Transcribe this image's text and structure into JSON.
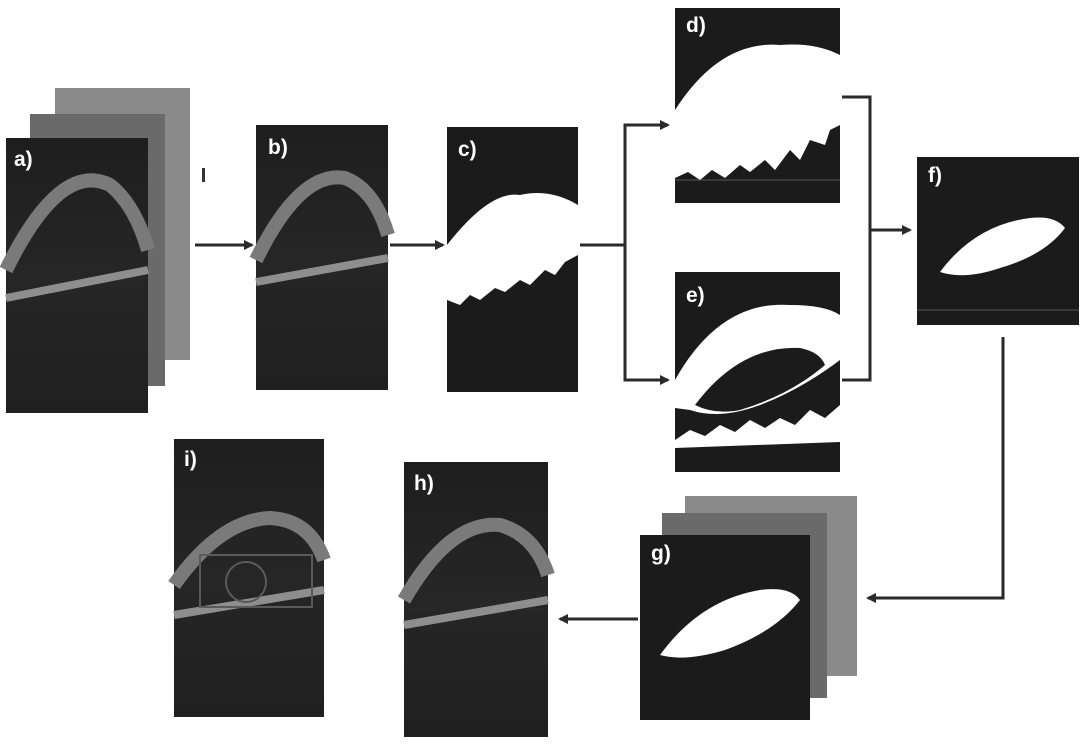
{
  "panels": {
    "a": "a)",
    "b": "b)",
    "c": "c)",
    "d": "d)",
    "e": "e)",
    "f": "f)",
    "g": "g)",
    "h": "h)",
    "i": "i)"
  },
  "colors": {
    "background": "#ffffff",
    "image_bg": "#1b1b1b",
    "retina_layer": "#6e6e6e",
    "mask": "#ffffff",
    "arrow": "#2a2a2a",
    "stack_back": "#8a8a8a"
  }
}
